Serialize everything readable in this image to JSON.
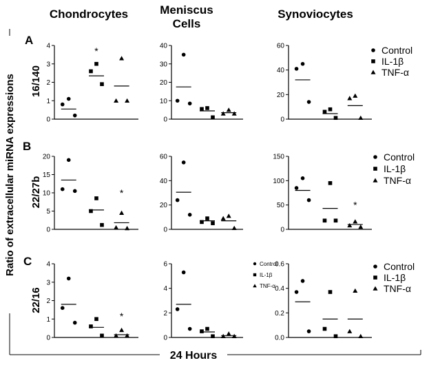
{
  "figure": {
    "y_axis_label": "Ratio of extracellular miRNA expressions",
    "x_axis_label": "24 Hours",
    "columns": [
      "Chondrocytes",
      "Meniscus Cells",
      "Synoviocytes"
    ],
    "rows": [
      {
        "letter": "A",
        "label": "16/140"
      },
      {
        "letter": "B",
        "label": "22/27b"
      },
      {
        "letter": "C",
        "label": "22/16"
      }
    ]
  },
  "chart_data": [
    {
      "type": "scatter",
      "row": 0,
      "col": 0,
      "ylim": [
        0,
        4
      ],
      "ticks": [
        "0",
        "1",
        "2",
        "3",
        "4"
      ],
      "series": [
        {
          "name": "Control",
          "points": [
            1.1,
            0.8,
            0.2
          ],
          "mean": 0.55
        },
        {
          "name": "IL-1β",
          "points": [
            3.0,
            2.6,
            1.9
          ],
          "mean": 2.35
        },
        {
          "name": "TNF-α",
          "points": [
            3.3,
            1.0,
            1.0
          ],
          "mean": 1.8
        }
      ],
      "stars": [
        {
          "series": 1,
          "y": 3.7
        }
      ]
    },
    {
      "type": "scatter",
      "row": 0,
      "col": 1,
      "ylim": [
        0,
        40
      ],
      "ticks": [
        "0",
        "10",
        "20",
        "30",
        "40"
      ],
      "series": [
        {
          "name": "Control",
          "points": [
            35,
            10,
            8.5
          ],
          "mean": 17.5
        },
        {
          "name": "IL-1β",
          "points": [
            6,
            5.5,
            1
          ],
          "mean": 4.5
        },
        {
          "name": "TNF-α",
          "points": [
            5,
            3,
            3
          ],
          "mean": 3.5
        }
      ],
      "stars": []
    },
    {
      "type": "scatter",
      "row": 0,
      "col": 2,
      "ylim": [
        0,
        60
      ],
      "ticks": [
        "0",
        "20",
        "40",
        "60"
      ],
      "series": [
        {
          "name": "Control",
          "points": [
            45,
            41,
            14
          ],
          "mean": 32
        },
        {
          "name": "IL-1β",
          "points": [
            8,
            6,
            1
          ],
          "mean": 4.5
        },
        {
          "name": "TNF-α",
          "points": [
            19,
            17,
            1
          ],
          "mean": 11
        }
      ],
      "stars": []
    },
    {
      "type": "scatter",
      "row": 1,
      "col": 0,
      "ylim": [
        0,
        20
      ],
      "ticks": [
        "0",
        "5",
        "10",
        "15",
        "20"
      ],
      "series": [
        {
          "name": "Control",
          "points": [
            19,
            11,
            10.5
          ],
          "mean": 13.5
        },
        {
          "name": "IL-1β",
          "points": [
            8.5,
            5,
            1.2
          ],
          "mean": 5.3
        },
        {
          "name": "TNF-α",
          "points": [
            4.5,
            0.5,
            0.3
          ],
          "mean": 1.8
        }
      ],
      "stars": [
        {
          "series": 2,
          "y": 10
        }
      ]
    },
    {
      "type": "scatter",
      "row": 1,
      "col": 1,
      "ylim": [
        0,
        60
      ],
      "ticks": [
        "0",
        "20",
        "40",
        "60"
      ],
      "series": [
        {
          "name": "Control",
          "points": [
            55,
            24,
            12
          ],
          "mean": 30.5
        },
        {
          "name": "IL-1β",
          "points": [
            9,
            6,
            5
          ],
          "mean": 7
        },
        {
          "name": "TNF-α",
          "points": [
            11,
            9,
            1
          ],
          "mean": 7
        }
      ],
      "stars": []
    },
    {
      "type": "scatter",
      "row": 1,
      "col": 2,
      "ylim": [
        0,
        150
      ],
      "ticks": [
        "0",
        "50",
        "100",
        "150"
      ],
      "series": [
        {
          "name": "Control",
          "points": [
            105,
            85,
            60
          ],
          "mean": 80
        },
        {
          "name": "IL-1β",
          "points": [
            95,
            18,
            18
          ],
          "mean": 43
        },
        {
          "name": "TNF-α",
          "points": [
            16,
            8,
            5
          ],
          "mean": 10
        }
      ],
      "stars": [
        {
          "series": 2,
          "y": 50
        }
      ]
    },
    {
      "type": "scatter",
      "row": 2,
      "col": 0,
      "ylim": [
        0,
        4
      ],
      "ticks": [
        "0",
        "1",
        "2",
        "3",
        "4"
      ],
      "series": [
        {
          "name": "Control",
          "points": [
            3.2,
            1.6,
            0.8
          ],
          "mean": 1.8
        },
        {
          "name": "IL-1β",
          "points": [
            1.0,
            0.6,
            0.1
          ],
          "mean": 0.55
        },
        {
          "name": "TNF-α",
          "points": [
            0.4,
            0.1,
            0.1
          ],
          "mean": 0.15
        }
      ],
      "stars": [
        {
          "series": 2,
          "y": 1.15
        }
      ]
    },
    {
      "type": "scatter",
      "row": 2,
      "col": 1,
      "ylim": [
        0,
        6
      ],
      "ticks": [
        "0",
        "2",
        "4",
        "6"
      ],
      "series": [
        {
          "name": "Control",
          "points": [
            5.3,
            2.3,
            0.7
          ],
          "mean": 2.7
        },
        {
          "name": "IL-1β",
          "points": [
            0.7,
            0.5,
            0.1
          ],
          "mean": 0.45
        },
        {
          "name": "TNF-α",
          "points": [
            0.3,
            0.1,
            0.1
          ],
          "mean": 0.15
        }
      ],
      "stars": []
    },
    {
      "type": "scatter",
      "row": 2,
      "col": 2,
      "ylim": [
        0,
        0.6
      ],
      "ticks": [
        "0.0",
        "0.2",
        "0.4",
        "0.6"
      ],
      "series": [
        {
          "name": "Control",
          "points": [
            0.46,
            0.37,
            0.05
          ],
          "mean": 0.29
        },
        {
          "name": "IL-1β",
          "points": [
            0.37,
            0.07,
            0.01
          ],
          "mean": 0.15
        },
        {
          "name": "TNF-α",
          "points": [
            0.38,
            0.05,
            0.01
          ],
          "mean": 0.15
        }
      ],
      "stars": []
    }
  ],
  "legends": [
    {
      "row": 0,
      "style": "large",
      "items": [
        "Control",
        "IL-1β",
        "TNF-α"
      ]
    },
    {
      "row": 1,
      "style": "large",
      "items": [
        "Control",
        "IL-1β",
        "TNF-α"
      ]
    },
    {
      "row": 2,
      "style": "small",
      "items": [
        "Control",
        "IL-1β",
        "TNF-α"
      ]
    },
    {
      "row": 2,
      "style": "large",
      "items": [
        "Control",
        "IL-1β",
        "TNF-α"
      ]
    }
  ]
}
